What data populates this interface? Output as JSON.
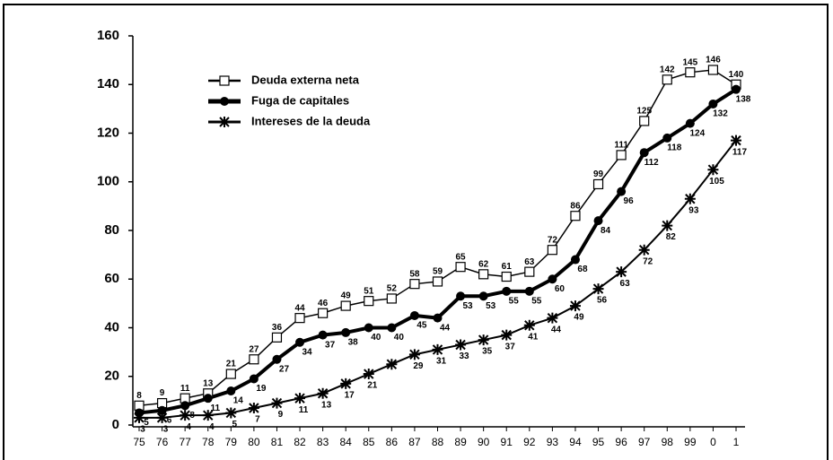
{
  "chart_data": {
    "type": "line",
    "categories": [
      "75",
      "76",
      "77",
      "78",
      "79",
      "80",
      "81",
      "82",
      "83",
      "84",
      "85",
      "86",
      "87",
      "88",
      "89",
      "90",
      "91",
      "92",
      "93",
      "94",
      "95",
      "96",
      "97",
      "98",
      "99",
      "0",
      "1"
    ],
    "series": [
      {
        "name": "Deuda externa neta",
        "color": "#000000",
        "marker": "square",
        "values": [
          8,
          9,
          11,
          13,
          21,
          27,
          36,
          44,
          46,
          49,
          51,
          52,
          58,
          59,
          65,
          62,
          61,
          63,
          72,
          86,
          99,
          111,
          125,
          142,
          145,
          146,
          140
        ]
      },
      {
        "name": "Fuga de capitales",
        "color": "#000000",
        "marker": "circle",
        "values": [
          5,
          6,
          8,
          11,
          14,
          19,
          27,
          34,
          37,
          38,
          40,
          40,
          45,
          44,
          53,
          53,
          55,
          55,
          60,
          68,
          84,
          96,
          112,
          118,
          124,
          132,
          138
        ]
      },
      {
        "name": "Intereses de la deuda",
        "color": "#000000",
        "marker": "star",
        "values": [
          3,
          3,
          4,
          4,
          5,
          7,
          9,
          11,
          13,
          17,
          21,
          25,
          29,
          31,
          33,
          35,
          37,
          41,
          44,
          49,
          56,
          63,
          72,
          82,
          93,
          105,
          117
        ],
        "value_labels": [
          "3",
          "3",
          "4",
          "4",
          "5",
          "7",
          "9",
          "11",
          "13",
          "17",
          "21",
          null,
          "29",
          "31",
          "33",
          "35",
          "37",
          "41",
          "44",
          "49",
          "56",
          "63",
          "72",
          "82",
          "93",
          "105",
          "117"
        ]
      }
    ],
    "ylim": [
      0,
      160
    ],
    "yticks": [
      0,
      20,
      40,
      60,
      80,
      100,
      120,
      140,
      160
    ],
    "grid": false
  }
}
